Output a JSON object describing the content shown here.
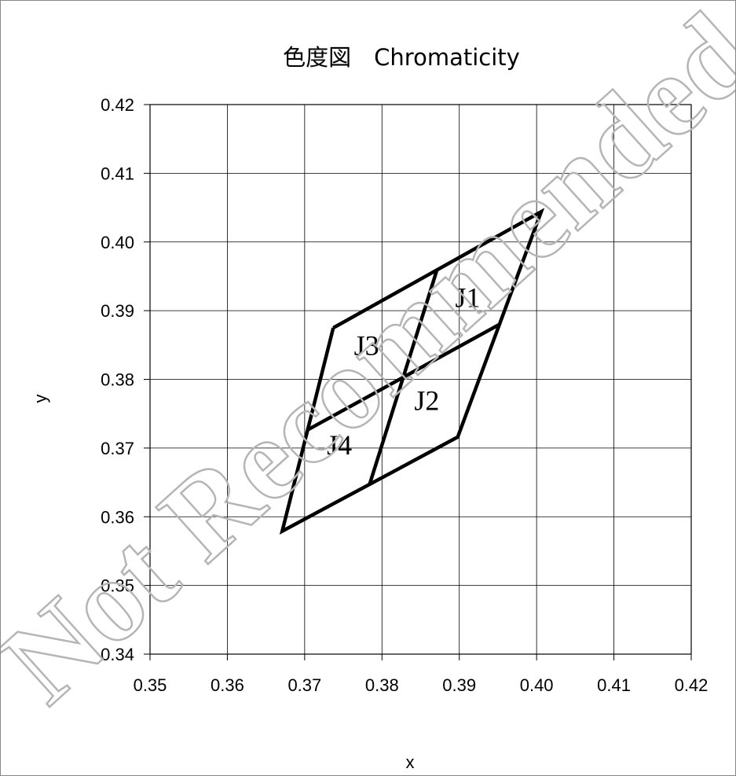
{
  "chart_data": {
    "type": "line",
    "title": "色度図　Chromaticity",
    "xlabel": "x",
    "ylabel": "y",
    "xlim": [
      0.35,
      0.42
    ],
    "ylim": [
      0.34,
      0.42
    ],
    "x_ticks": [
      "0.35",
      "0.36",
      "0.37",
      "0.38",
      "0.39",
      "0.40",
      "0.41",
      "0.42"
    ],
    "y_ticks": [
      "0.34",
      "0.35",
      "0.36",
      "0.37",
      "0.38",
      "0.39",
      "0.40",
      "0.41",
      "0.42"
    ],
    "grid": true,
    "series": [
      {
        "values": [
          [
            0.3737,
            0.3875
          ],
          [
            0.4006,
            0.4044
          ],
          [
            0.3898,
            0.3716
          ],
          [
            0.3671,
            0.3579
          ],
          [
            0.3737,
            0.3875
          ]
        ]
      },
      {
        "values": [
          [
            0.3703,
            0.3726
          ],
          [
            0.3952,
            0.388
          ]
        ]
      },
      {
        "values": [
          [
            0.3871,
            0.3959
          ],
          [
            0.3784,
            0.3647
          ]
        ]
      }
    ],
    "regions": [
      {
        "label": "J1",
        "x": 0.3911,
        "y": 0.3915
      },
      {
        "label": "J2",
        "x": 0.3858,
        "y": 0.3765
      },
      {
        "label": "J3",
        "x": 0.378,
        "y": 0.3845
      },
      {
        "label": "J4",
        "x": 0.3745,
        "y": 0.37
      }
    ]
  },
  "watermark": "Not Recommended for New Design",
  "colors": {
    "line": "#000000",
    "grid": "#000000",
    "watermark": "#b5b5b5"
  }
}
